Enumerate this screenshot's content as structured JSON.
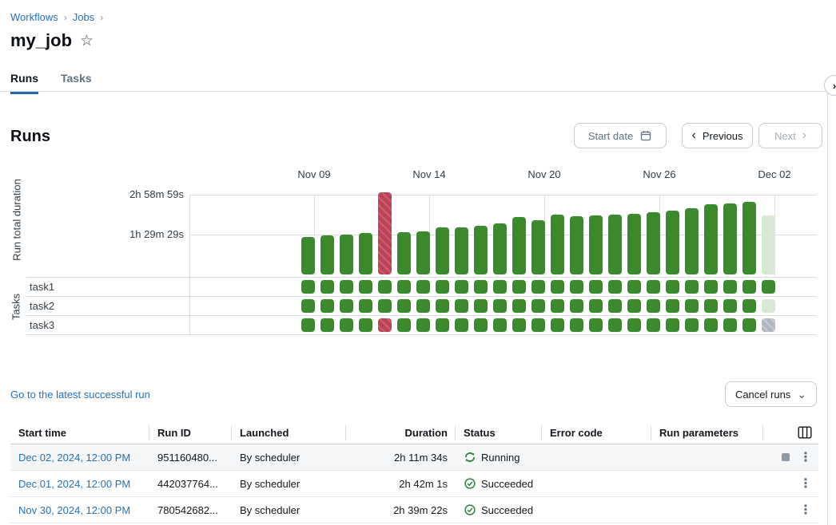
{
  "breadcrumb": {
    "items": [
      "Workflows",
      "Jobs"
    ],
    "separator": "›"
  },
  "page": {
    "title": "my_job"
  },
  "icons": {
    "star": "☆",
    "breadcrumb_chevron": "›",
    "prev_chevron": "‹",
    "next_chevron": "›",
    "dropdown_chevron": "⌄",
    "kebab": "⋮",
    "panel_toggle_chevron": "›"
  },
  "tabs": [
    {
      "label": "Runs",
      "active": true
    },
    {
      "label": "Tasks",
      "active": false
    }
  ],
  "runs_section": {
    "heading": "Runs",
    "start_date_button": "Start date",
    "previous_button": "Previous",
    "next_button": "Next",
    "latest_run_link": "Go to the latest successful run",
    "cancel_runs_button": "Cancel runs"
  },
  "chart_data": {
    "type": "bar",
    "ylabel": "Run total duration",
    "tasks_label": "Tasks",
    "y_ticks": [
      {
        "label": "2h 58m 59s",
        "seconds": 10739
      },
      {
        "label": "1h 29m 29s",
        "seconds": 5369
      }
    ],
    "x_axis_labels": [
      "Nov 09",
      "Nov 14",
      "Nov 20",
      "Nov 26",
      "Dec 02"
    ],
    "task_rows": [
      "task1",
      "task2",
      "task3"
    ],
    "legend": "grid off, one bar per run, bottom matrix shows per-task result",
    "runs": [
      {
        "date": "Nov 08, 2024",
        "duration_seconds": 5000,
        "status": "succeeded",
        "tasks": [
          "succeeded",
          "succeeded",
          "succeeded"
        ]
      },
      {
        "date": "Nov 09, 2024",
        "duration_seconds": 5300,
        "status": "succeeded",
        "tasks": [
          "succeeded",
          "succeeded",
          "succeeded"
        ]
      },
      {
        "date": "Nov 10, 2024",
        "duration_seconds": 5350,
        "status": "succeeded",
        "tasks": [
          "succeeded",
          "succeeded",
          "succeeded"
        ]
      },
      {
        "date": "Nov 11, 2024",
        "duration_seconds": 5600,
        "status": "succeeded",
        "tasks": [
          "succeeded",
          "succeeded",
          "succeeded"
        ]
      },
      {
        "date": "Nov 12, 2024",
        "duration_seconds": 11100,
        "status": "failed",
        "tasks": [
          "succeeded",
          "succeeded",
          "failed"
        ]
      },
      {
        "date": "Nov 13, 2024",
        "duration_seconds": 5700,
        "status": "succeeded",
        "tasks": [
          "succeeded",
          "succeeded",
          "succeeded"
        ]
      },
      {
        "date": "Nov 14, 2024",
        "duration_seconds": 5800,
        "status": "succeeded",
        "tasks": [
          "succeeded",
          "succeeded",
          "succeeded"
        ]
      },
      {
        "date": "Nov 15, 2024",
        "duration_seconds": 6300,
        "status": "succeeded",
        "tasks": [
          "succeeded",
          "succeeded",
          "succeeded"
        ]
      },
      {
        "date": "Nov 16, 2024",
        "duration_seconds": 6300,
        "status": "succeeded",
        "tasks": [
          "succeeded",
          "succeeded",
          "succeeded"
        ]
      },
      {
        "date": "Nov 17, 2024",
        "duration_seconds": 6500,
        "status": "succeeded",
        "tasks": [
          "succeeded",
          "succeeded",
          "succeeded"
        ]
      },
      {
        "date": "Nov 18, 2024",
        "duration_seconds": 6900,
        "status": "succeeded",
        "tasks": [
          "succeeded",
          "succeeded",
          "succeeded"
        ]
      },
      {
        "date": "Nov 19, 2024",
        "duration_seconds": 7700,
        "status": "succeeded",
        "tasks": [
          "succeeded",
          "succeeded",
          "succeeded"
        ]
      },
      {
        "date": "Nov 20, 2024",
        "duration_seconds": 7300,
        "status": "succeeded",
        "tasks": [
          "succeeded",
          "succeeded",
          "succeeded"
        ]
      },
      {
        "date": "Nov 21, 2024",
        "duration_seconds": 8100,
        "status": "succeeded",
        "tasks": [
          "succeeded",
          "succeeded",
          "succeeded"
        ]
      },
      {
        "date": "Nov 22, 2024",
        "duration_seconds": 7800,
        "status": "succeeded",
        "tasks": [
          "succeeded",
          "succeeded",
          "succeeded"
        ]
      },
      {
        "date": "Nov 23, 2024",
        "duration_seconds": 7900,
        "status": "succeeded",
        "tasks": [
          "succeeded",
          "succeeded",
          "succeeded"
        ]
      },
      {
        "date": "Nov 24, 2024",
        "duration_seconds": 8100,
        "status": "succeeded",
        "tasks": [
          "succeeded",
          "succeeded",
          "succeeded"
        ]
      },
      {
        "date": "Nov 25, 2024",
        "duration_seconds": 8200,
        "status": "succeeded",
        "tasks": [
          "succeeded",
          "succeeded",
          "succeeded"
        ]
      },
      {
        "date": "Nov 26, 2024",
        "duration_seconds": 8400,
        "status": "succeeded",
        "tasks": [
          "succeeded",
          "succeeded",
          "succeeded"
        ]
      },
      {
        "date": "Nov 27, 2024",
        "duration_seconds": 8600,
        "status": "succeeded",
        "tasks": [
          "succeeded",
          "succeeded",
          "succeeded"
        ]
      },
      {
        "date": "Nov 28, 2024",
        "duration_seconds": 8900,
        "status": "succeeded",
        "tasks": [
          "succeeded",
          "succeeded",
          "succeeded"
        ]
      },
      {
        "date": "Nov 29, 2024",
        "duration_seconds": 9400,
        "status": "succeeded",
        "tasks": [
          "succeeded",
          "succeeded",
          "succeeded"
        ]
      },
      {
        "date": "Nov 30, 2024",
        "duration_seconds": 9562,
        "status": "succeeded",
        "tasks": [
          "succeeded",
          "succeeded",
          "succeeded"
        ]
      },
      {
        "date": "Dec 01, 2024",
        "duration_seconds": 9721,
        "status": "succeeded",
        "tasks": [
          "succeeded",
          "succeeded",
          "succeeded"
        ]
      },
      {
        "date": "Dec 02, 2024",
        "duration_seconds": 7894,
        "status": "running",
        "tasks": [
          "succeeded",
          "running",
          "pending"
        ]
      }
    ],
    "colors": {
      "succeeded": "#3C8A2E",
      "running": "#D7E8D3",
      "failed": "#BC4257",
      "failed_stripe": "#CA6273",
      "pending": "#AEB7C2",
      "pending_stripe": "#C5CCD5",
      "gridline": "#D9DDE3"
    }
  },
  "table": {
    "columns": [
      "Start time",
      "Run ID",
      "Launched",
      "Duration",
      "Status",
      "Error code",
      "Run parameters"
    ],
    "rows": [
      {
        "start_time": "Dec 02, 2024, 12:00 PM",
        "run_id": "951160480...",
        "launched": "By scheduler",
        "duration": "2h 11m 34s",
        "status": "Running",
        "error_code": "",
        "run_parameters": ""
      },
      {
        "start_time": "Dec 01, 2024, 12:00 PM",
        "run_id": "442037764...",
        "launched": "By scheduler",
        "duration": "2h 42m 1s",
        "status": "Succeeded",
        "error_code": "",
        "run_parameters": ""
      },
      {
        "start_time": "Nov 30, 2024, 12:00 PM",
        "run_id": "780542682...",
        "launched": "By scheduler",
        "duration": "2h 39m 22s",
        "status": "Succeeded",
        "error_code": "",
        "run_parameters": ""
      }
    ]
  },
  "status_colors": {
    "success_green": "#2E8540",
    "link_blue": "#2272B4"
  }
}
